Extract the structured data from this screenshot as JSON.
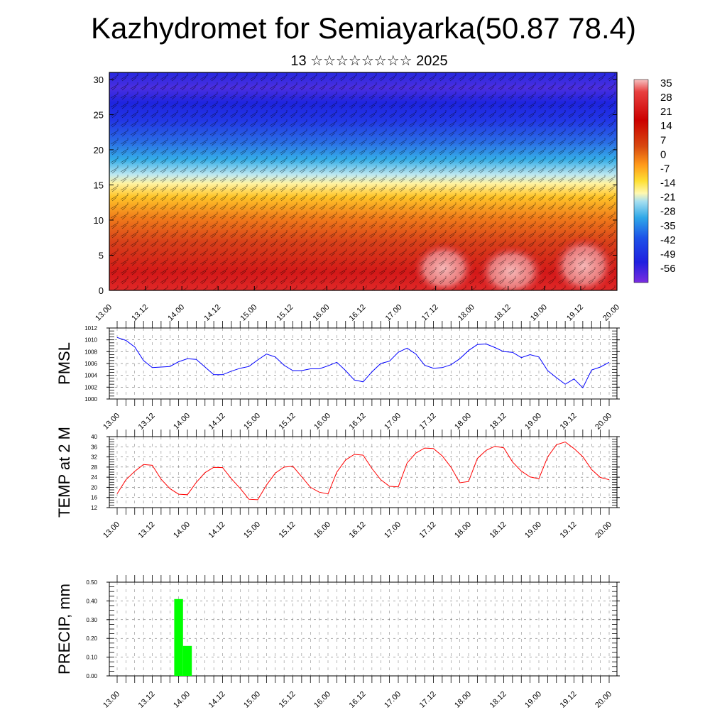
{
  "title": "Kazhydromet for Semiayarka(50.87 78.4)",
  "subtitle": "13 ☆☆☆☆☆☆☆☆ 2025",
  "colors": {
    "pmsl_line": "#0000ff",
    "temp_line": "#ff0000",
    "precip_bar": "#00ff00",
    "colorbar": [
      "#f4b8b8",
      "#e63232",
      "#cc0000",
      "#d24a00",
      "#ff9a1a",
      "#ffe033",
      "#fff8b0",
      "#a6dff0",
      "#30a8e8",
      "#1d52e8",
      "#2020e0",
      "#7a2ce0"
    ]
  },
  "chart_data": [
    {
      "type": "heatmap",
      "title": "",
      "x_tick_labels": [
        "13.00",
        "13.12",
        "14.00",
        "14.12",
        "15.00",
        "15.12",
        "16.00",
        "16.12",
        "17.00",
        "17.12",
        "18.00",
        "18.12",
        "19.00",
        "19.12",
        "20.00"
      ],
      "y_tick_labels": [
        "0",
        "5",
        "10",
        "15",
        "20",
        "25",
        "30"
      ],
      "ylim": [
        0,
        31
      ],
      "colorbar_labels": [
        "35",
        "28",
        "21",
        "14",
        "7",
        "0",
        "-7",
        "-14",
        "-21",
        "-28",
        "-35",
        "-42",
        "-49",
        "-56"
      ],
      "overlay": "wind barbs"
    },
    {
      "type": "line",
      "ylabel": "PMSL",
      "ylim": [
        1000,
        1012
      ],
      "y_ticks": [
        "1000",
        "1002",
        "1004",
        "1006",
        "1008",
        "1010",
        "1012"
      ],
      "x_tick_labels": [
        "13.00",
        "13.12",
        "14.00",
        "14.12",
        "15.00",
        "15.12",
        "16.00",
        "16.12",
        "17.00",
        "17.12",
        "18.00",
        "18.12",
        "19.00",
        "19.12",
        "20.00"
      ],
      "series": [
        {
          "values": [
            1010.4,
            1009.9,
            1008.8,
            1006.5,
            1005.3,
            1005.4,
            1005.5,
            1006.3,
            1006.8,
            1006.7,
            1005.4,
            1004.1,
            1004.1,
            1004.7,
            1005.2,
            1005.5,
            1006.6,
            1007.6,
            1007.1,
            1005.7,
            1004.8,
            1004.8,
            1005.1,
            1005.1,
            1005.6,
            1006.2,
            1004.8,
            1003.2,
            1002.9,
            1004.6,
            1006.0,
            1006.4,
            1007.9,
            1008.6,
            1007.6,
            1005.7,
            1005.2,
            1005.3,
            1005.8,
            1006.8,
            1008.2,
            1009.2,
            1009.3,
            1008.7,
            1008.0,
            1007.9,
            1007.0,
            1007.5,
            1007.1,
            1004.8,
            1003.6,
            1002.5,
            1003.4,
            1001.9,
            1004.9,
            1005.4,
            1006.2
          ]
        }
      ]
    },
    {
      "type": "line",
      "ylabel": "TEMP at 2 M",
      "ylim": [
        12,
        40
      ],
      "y_ticks": [
        "12",
        "16",
        "20",
        "24",
        "28",
        "32",
        "36",
        "40"
      ],
      "x_tick_labels": [
        "13.00",
        "13.12",
        "14.00",
        "14.12",
        "15.00",
        "15.12",
        "16.00",
        "16.12",
        "17.00",
        "17.12",
        "18.00",
        "18.12",
        "19.00",
        "19.12",
        "20.00"
      ],
      "series": [
        {
          "values": [
            17.5,
            23.0,
            26.3,
            29.0,
            28.7,
            23.2,
            19.5,
            17.3,
            17.1,
            21.9,
            25.8,
            27.9,
            27.8,
            23.4,
            19.6,
            15.3,
            15.1,
            20.9,
            25.6,
            28.0,
            28.3,
            24.2,
            20.0,
            18.1,
            17.4,
            26.0,
            30.8,
            33.0,
            32.7,
            27.4,
            23.0,
            20.4,
            20.2,
            29.6,
            33.5,
            35.5,
            35.3,
            32.4,
            27.9,
            21.8,
            22.3,
            31.4,
            34.6,
            36.2,
            35.6,
            30.0,
            26.4,
            24.1,
            23.4,
            32.0,
            36.8,
            37.9,
            35.3,
            32.1,
            27.0,
            23.9,
            23.0
          ]
        }
      ]
    },
    {
      "type": "bar",
      "ylabel": "PRECIP, mm",
      "ylim": [
        0,
        0.5
      ],
      "y_ticks": [
        "0.00",
        "0.10",
        "0.20",
        "0.30",
        "0.40",
        "0.50"
      ],
      "x_tick_labels": [
        "13.00",
        "13.12",
        "14.00",
        "14.12",
        "15.00",
        "15.12",
        "16.00",
        "16.12",
        "17.00",
        "17.12",
        "18.00",
        "18.12",
        "19.00",
        "19.12",
        "20.00"
      ],
      "bars": [
        {
          "x": "13.21",
          "value": 0.41
        },
        {
          "x": "13.24",
          "value": 0.16
        }
      ]
    }
  ]
}
